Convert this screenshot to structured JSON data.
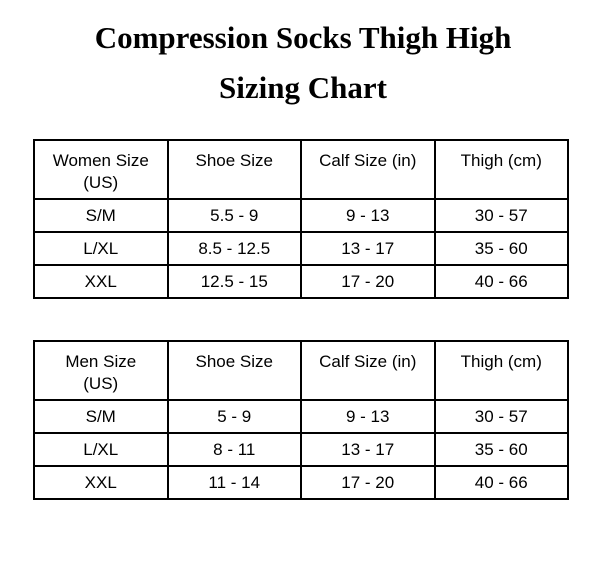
{
  "page": {
    "title": "Compression Socks Thigh High\nSizing Chart"
  },
  "colors": {
    "background": "#ffffff",
    "text": "#000000",
    "table_border": "#000000"
  },
  "tables": [
    {
      "headers": [
        "Women Size\n(US)",
        "Shoe Size",
        "Calf Size (in)",
        "Thigh (cm)"
      ],
      "rows": [
        [
          "S/M",
          "5.5 - 9",
          "9 - 13",
          "30 - 57"
        ],
        [
          "L/XL",
          "8.5 - 12.5",
          "13 - 17",
          "35 - 60"
        ],
        [
          "XXL",
          "12.5 - 15",
          "17 - 20",
          "40 - 66"
        ]
      ]
    },
    {
      "headers": [
        "Men Size\n(US)",
        "Shoe Size",
        "Calf Size (in)",
        "Thigh (cm)"
      ],
      "rows": [
        [
          "S/M",
          "5 - 9",
          "9 - 13",
          "30 - 57"
        ],
        [
          "L/XL",
          "8 - 11",
          "13 - 17",
          "35 - 60"
        ],
        [
          "XXL",
          "11 - 14",
          "17 - 20",
          "40 - 66"
        ]
      ]
    }
  ]
}
